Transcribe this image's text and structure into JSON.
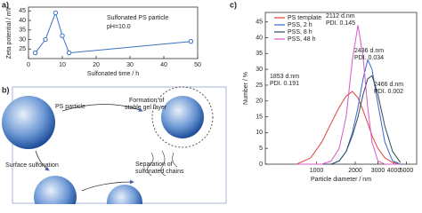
{
  "panel_labels": [
    "a)",
    "b)",
    "c)"
  ],
  "chart_data": [
    {
      "type": "line",
      "y_label": "Zeta potential / mV",
      "x_label": "Sulfonated time / h",
      "annotations": [
        "Sulfonated PS particle",
        "pH=10.0"
      ],
      "x": [
        2,
        5,
        8,
        10,
        12,
        48
      ],
      "series": [
        {
          "color": "#3a6fc4",
          "values": [
            23,
            30,
            44,
            32,
            23,
            29
          ]
        }
      ],
      "xlim": [
        0,
        50
      ],
      "xticks": [
        0,
        10,
        20,
        30,
        40,
        50
      ],
      "ylim": [
        20,
        47
      ],
      "yticks": [
        25,
        30,
        35,
        40,
        45
      ]
    },
    {
      "type": "line",
      "y_label": "Number / %",
      "x_label": "Particle diameter / nm",
      "xlog": true,
      "annotations": [
        "2112 d.nm",
        "PDI. 0.145",
        "2436 d.nm",
        "PDI. 0.034",
        "1853 d.nm",
        "PDI. 0.191",
        "2466 d.nm",
        "PDI. 0.002"
      ],
      "x": [
        700,
        900,
        1100,
        1300,
        1500,
        1700,
        1900,
        2100,
        2300,
        2500,
        2700,
        3000,
        3400,
        3900,
        4500
      ],
      "series": [
        {
          "name": "PS template",
          "color": "#e0413a",
          "values": [
            0,
            2,
            7,
            13,
            18,
            21.5,
            23,
            21,
            17,
            13,
            9,
            5,
            2,
            0.5,
            0
          ]
        },
        {
          "name": "PSS, 2 h",
          "color": "#3b66c8",
          "values": [
            0,
            0,
            0,
            0,
            1,
            4,
            10,
            18,
            27,
            33,
            30,
            19,
            7,
            1,
            0
          ]
        },
        {
          "name": "PSS, 8 h",
          "color": "#2b4a5a",
          "values": [
            0,
            0,
            0,
            0,
            1,
            4,
            9,
            15,
            22,
            27,
            28,
            22,
            12,
            4,
            0.5
          ]
        },
        {
          "name": "PSS, 48 h",
          "color": "#d65ac8",
          "values": [
            0,
            0,
            0,
            1,
            5,
            15,
            33,
            44,
            34,
            18,
            7,
            1,
            0,
            0,
            0
          ]
        }
      ],
      "xlim": [
        400,
        6000
      ],
      "xticks": [
        1000,
        2000,
        3000,
        4000,
        5000
      ],
      "ylim": [
        0,
        48
      ],
      "yticks": [
        0,
        5,
        10,
        15,
        20,
        25,
        30,
        35,
        40,
        45
      ]
    }
  ],
  "diagram": {
    "labels": [
      "PS particle",
      "Formation of",
      "stable gel layer",
      "Surface sulfonation",
      "Separation of",
      "sulfonated chains"
    ]
  }
}
